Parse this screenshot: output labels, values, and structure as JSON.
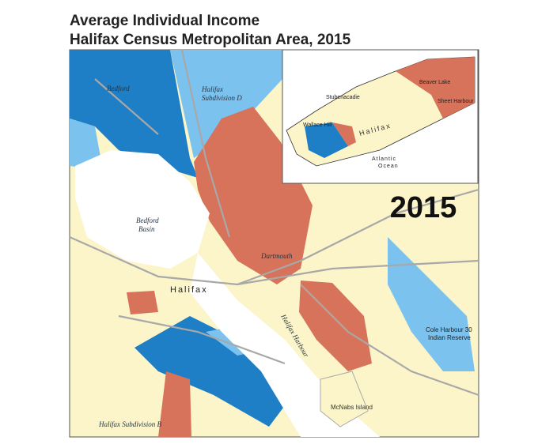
{
  "header": {
    "title": [
      "Average Individual Income",
      "Halifax Census Metropolitan Area, 2015"
    ]
  },
  "map": {
    "year": "2015",
    "labels": [
      "Bedford",
      "Halifax",
      "Subdivision D",
      "Bedford",
      "Basin",
      "Dartmouth",
      "Halifax",
      "Halifax Harbour",
      "McNabs Island",
      "Cole Harbour 30",
      "Indian Reserve",
      "Halifax Subdivision B"
    ]
  },
  "inset": {
    "labels": [
      "Stubenacadie",
      "Beaver Lake",
      "Sheet Harbour",
      "Wallace Hill",
      "Halifax",
      "Atlantic",
      "Ocean"
    ]
  }
}
